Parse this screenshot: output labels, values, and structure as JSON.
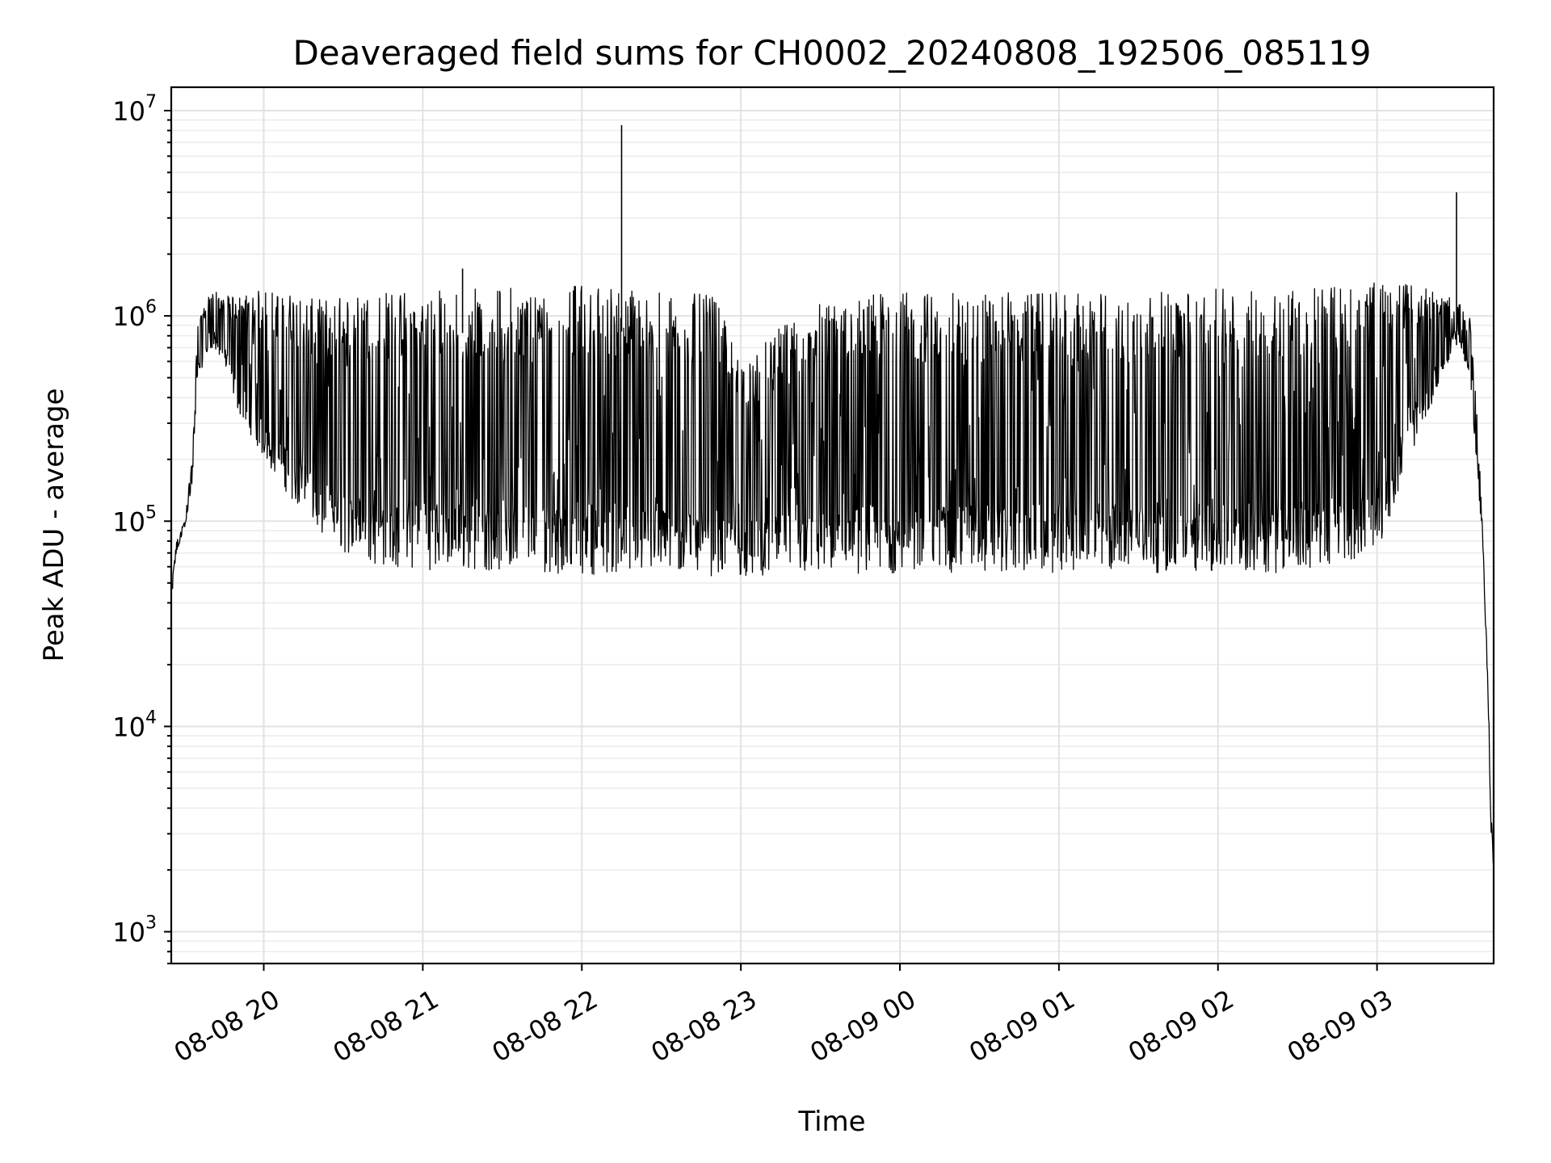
{
  "chart_data": {
    "type": "line",
    "title": "Deaveraged field sums for CH0002_20240808_192506_085119",
    "xlabel": "Time",
    "ylabel": "Peak ADU - average",
    "y_scale": "log",
    "ylim": [
      700,
      13000000
    ],
    "xlim": [
      "2024-08-08 19:25:06",
      "2024-08-09 03:44:00"
    ],
    "grid": true,
    "line_color": "#000000",
    "y_ticks": [
      {
        "value": 1000,
        "mantissa": "10",
        "exponent": "3"
      },
      {
        "value": 10000,
        "mantissa": "10",
        "exponent": "4"
      },
      {
        "value": 100000,
        "mantissa": "10",
        "exponent": "5"
      },
      {
        "value": 1000000,
        "mantissa": "10",
        "exponent": "6"
      },
      {
        "value": 10000000,
        "mantissa": "10",
        "exponent": "7"
      }
    ],
    "x_ticks": [
      {
        "time": "2024-08-08 20:00",
        "label": "08-08 20"
      },
      {
        "time": "2024-08-08 21:00",
        "label": "08-08 21"
      },
      {
        "time": "2024-08-08 22:00",
        "label": "08-08 22"
      },
      {
        "time": "2024-08-08 23:00",
        "label": "08-08 23"
      },
      {
        "time": "2024-08-09 00:00",
        "label": "08-09 00"
      },
      {
        "time": "2024-08-09 01:00",
        "label": "08-09 01"
      },
      {
        "time": "2024-08-09 02:00",
        "label": "08-09 02"
      },
      {
        "time": "2024-08-09 03:00",
        "label": "08-09 03"
      }
    ],
    "series": [
      {
        "envelope": {
          "x": [
            "2024-08-08 19:25",
            "2024-08-08 19:27",
            "2024-08-08 19:30",
            "2024-08-08 19:33",
            "2024-08-08 19:35",
            "2024-08-08 19:40",
            "2024-08-08 19:45",
            "2024-08-08 19:50",
            "2024-08-08 20:00",
            "2024-08-08 20:10",
            "2024-08-08 20:20",
            "2024-08-08 20:30",
            "2024-08-08 20:40",
            "2024-08-08 20:50",
            "2024-08-08 21:00",
            "2024-08-08 21:30",
            "2024-08-08 22:00",
            "2024-08-08 22:30",
            "2024-08-08 22:50",
            "2024-08-08 23:00",
            "2024-08-08 23:20",
            "2024-08-08 23:35",
            "2024-08-08 23:45",
            "2024-08-09 00:00",
            "2024-08-09 00:30",
            "2024-08-09 01:00",
            "2024-08-09 01:30",
            "2024-08-09 02:00",
            "2024-08-09 02:30",
            "2024-08-09 03:00",
            "2024-08-09 03:15",
            "2024-08-09 03:25",
            "2024-08-09 03:30",
            "2024-08-09 03:35",
            "2024-08-09 03:38",
            "2024-08-09 03:40",
            "2024-08-09 03:42",
            "2024-08-09 03:43",
            "2024-08-09 03:44"
          ],
          "low": [
            38000,
            70000,
            90000,
            150000,
            500000,
            700000,
            600000,
            350000,
            200000,
            130000,
            90000,
            70000,
            62000,
            58000,
            58000,
            57000,
            55000,
            55000,
            54000,
            54000,
            54000,
            54000,
            55000,
            55000,
            56000,
            56000,
            56000,
            56000,
            56000,
            70000,
            250000,
            500000,
            800000,
            500000,
            160000,
            70000,
            12000,
            3000,
            2000
          ],
          "high": [
            45000,
            80000,
            100000,
            200000,
            900000,
            1350000,
            1250000,
            1250000,
            1350000,
            1300000,
            1200000,
            1250000,
            1300000,
            1350000,
            1350000,
            1400000,
            1450000,
            1350000,
            1250000,
            600000,
            1000000,
            1250000,
            1300000,
            1300000,
            1300000,
            1300000,
            1300000,
            1350000,
            1400000,
            1450000,
            1450000,
            1250000,
            1200000,
            1000000,
            300000,
            80000,
            15000,
            4000,
            2100
          ]
        },
        "spikes": [
          {
            "x": "2024-08-08 22:15",
            "value": 8500000
          },
          {
            "x": "2024-08-09 03:30",
            "value": 4000000
          },
          {
            "x": "2024-08-08 21:15",
            "value": 1700000
          }
        ]
      }
    ]
  }
}
